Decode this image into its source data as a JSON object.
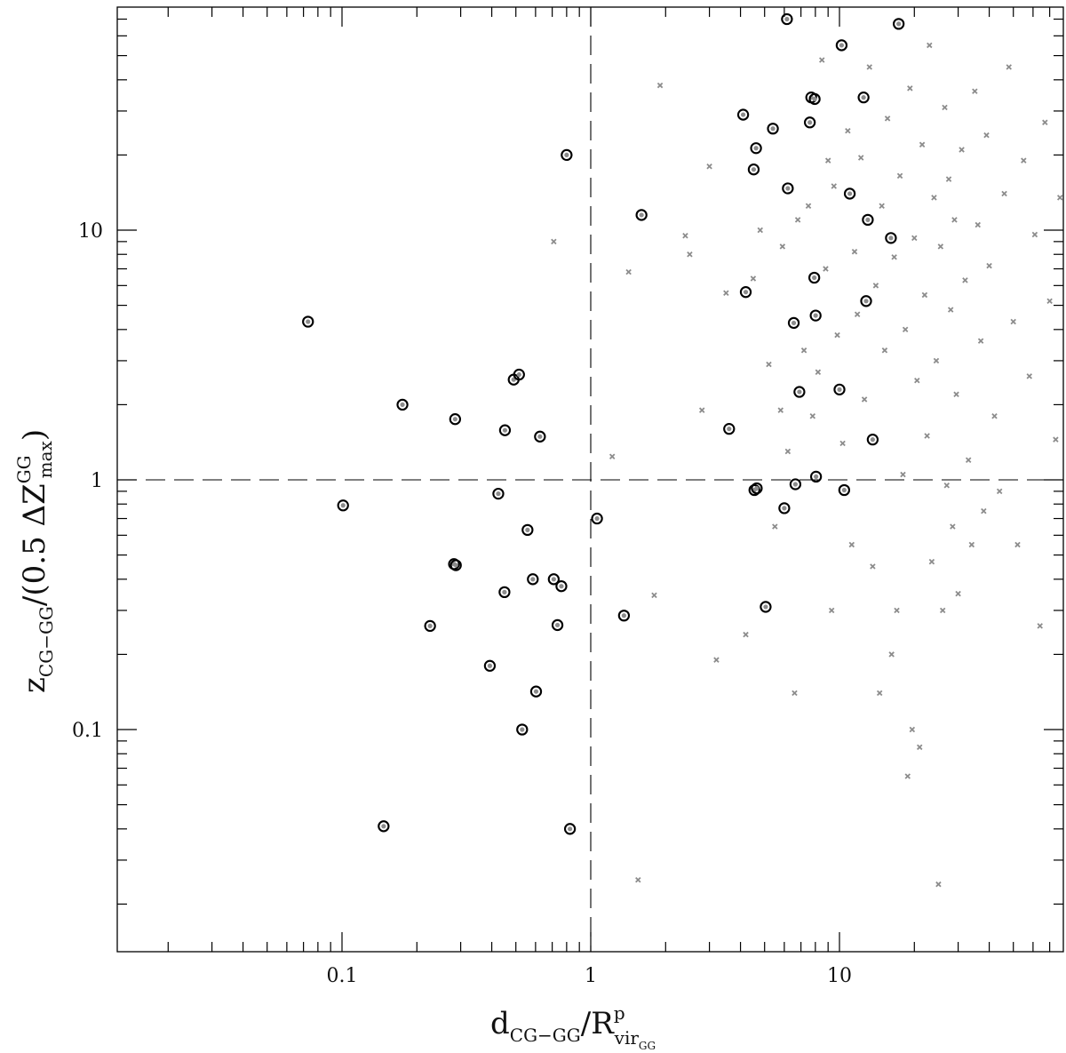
{
  "chart_data": {
    "type": "scatter",
    "title": "",
    "xscale": "log",
    "yscale": "log",
    "xlim": [
      0.014,
      80
    ],
    "ylim": [
      0.015,
      80
    ],
    "x_ticks": [
      {
        "value": 0.1,
        "label": "0.1"
      },
      {
        "value": 1,
        "label": "1"
      },
      {
        "value": 10,
        "label": "10"
      }
    ],
    "y_ticks": [
      {
        "value": 0.1,
        "label": "0.1"
      },
      {
        "value": 1,
        "label": "1"
      },
      {
        "value": 10,
        "label": "10"
      }
    ],
    "xlabel": {
      "main": "d",
      "sub": "CG−GG",
      "slash": "/R",
      "sup": "p",
      "sub2": "vir",
      "subsub": "GG"
    },
    "ylabel": {
      "main": "z",
      "sub": "CG−GG",
      "rest": "/(0.5 ΔZ",
      "sup": "GG",
      "sub2": "max",
      "close": ")"
    },
    "reference_lines": [
      {
        "axis": "x",
        "value": 1,
        "style": "dashed"
      },
      {
        "axis": "y",
        "value": 1,
        "style": "dashed"
      }
    ],
    "colors": {
      "background_points": "#8c8c8c",
      "highlight_circles": "#000000",
      "axes": "#000000"
    },
    "grid": false,
    "series": [
      {
        "marker": "circle",
        "points": [
          [
            0.073,
            4.3
          ],
          [
            0.101,
            0.79
          ],
          [
            0.147,
            0.041
          ],
          [
            0.175,
            2.0
          ],
          [
            0.226,
            0.26
          ],
          [
            0.285,
            1.75
          ],
          [
            0.282,
            0.46
          ],
          [
            0.287,
            0.455
          ],
          [
            0.393,
            0.18
          ],
          [
            0.425,
            0.88
          ],
          [
            0.452,
            1.58
          ],
          [
            0.45,
            0.355
          ],
          [
            0.49,
            2.52
          ],
          [
            0.515,
            2.64
          ],
          [
            0.53,
            0.1
          ],
          [
            0.557,
            0.63
          ],
          [
            0.585,
            0.4
          ],
          [
            0.603,
            0.142
          ],
          [
            0.625,
            1.49
          ],
          [
            0.71,
            0.4
          ],
          [
            0.735,
            0.262
          ],
          [
            0.762,
            0.375
          ],
          [
            0.8,
            20.0
          ],
          [
            0.825,
            0.04
          ],
          [
            1.06,
            0.7
          ],
          [
            1.36,
            0.286
          ],
          [
            1.6,
            11.5
          ],
          [
            3.6,
            1.6
          ],
          [
            4.1,
            29.0
          ],
          [
            4.2,
            5.65
          ],
          [
            4.55,
            0.91
          ],
          [
            4.52,
            17.5
          ],
          [
            4.62,
            21.3
          ],
          [
            4.65,
            0.925
          ],
          [
            5.05,
            0.31
          ],
          [
            5.4,
            25.5
          ],
          [
            6.0,
            0.77
          ],
          [
            6.15,
            70.0
          ],
          [
            6.2,
            14.7
          ],
          [
            6.55,
            4.25
          ],
          [
            6.65,
            0.96
          ],
          [
            6.9,
            2.25
          ],
          [
            7.6,
            27.0
          ],
          [
            7.7,
            34.0
          ],
          [
            7.95,
            33.5
          ],
          [
            7.92,
            6.45
          ],
          [
            8.05,
            1.03
          ],
          [
            8.02,
            4.55
          ],
          [
            10.0,
            2.3
          ],
          [
            10.2,
            55.0
          ],
          [
            10.45,
            0.91
          ],
          [
            11.0,
            14.0
          ],
          [
            12.5,
            34.0
          ],
          [
            12.8,
            5.2
          ],
          [
            13.0,
            11.0
          ],
          [
            13.6,
            1.45
          ],
          [
            16.1,
            9.3
          ],
          [
            17.3,
            67.0
          ]
        ]
      },
      {
        "marker": "x",
        "points": [
          [
            0.71,
            9.0
          ],
          [
            1.22,
            1.24
          ],
          [
            1.42,
            6.8
          ],
          [
            1.55,
            0.025
          ],
          [
            1.8,
            0.345
          ],
          [
            1.9,
            38.0
          ],
          [
            2.4,
            9.5
          ],
          [
            2.5,
            8.0
          ],
          [
            2.8,
            1.9
          ],
          [
            3.0,
            18.0
          ],
          [
            3.2,
            0.19
          ],
          [
            3.5,
            5.6
          ],
          [
            4.2,
            0.24
          ],
          [
            4.5,
            6.4
          ],
          [
            4.8,
            10.0
          ],
          [
            5.2,
            2.9
          ],
          [
            5.5,
            0.65
          ],
          [
            5.8,
            1.9
          ],
          [
            5.9,
            8.6
          ],
          [
            6.2,
            1.3
          ],
          [
            6.6,
            0.14
          ],
          [
            6.8,
            11.0
          ],
          [
            7.2,
            3.3
          ],
          [
            7.5,
            12.5
          ],
          [
            7.8,
            1.8
          ],
          [
            8.2,
            2.7
          ],
          [
            8.5,
            48.0
          ],
          [
            8.8,
            7.0
          ],
          [
            9.0,
            19.0
          ],
          [
            9.3,
            0.3
          ],
          [
            9.5,
            15.0
          ],
          [
            9.8,
            3.8
          ],
          [
            10.3,
            1.4
          ],
          [
            10.8,
            25.0
          ],
          [
            11.2,
            0.55
          ],
          [
            11.5,
            8.2
          ],
          [
            11.8,
            4.6
          ],
          [
            12.2,
            19.5
          ],
          [
            12.6,
            2.1
          ],
          [
            13.2,
            45.0
          ],
          [
            13.6,
            0.45
          ],
          [
            14.0,
            6.0
          ],
          [
            14.5,
            0.14
          ],
          [
            14.8,
            12.5
          ],
          [
            15.2,
            3.3
          ],
          [
            15.6,
            28.0
          ],
          [
            16.2,
            0.2
          ],
          [
            16.6,
            7.8
          ],
          [
            17.0,
            0.3
          ],
          [
            17.5,
            16.5
          ],
          [
            18.0,
            1.05
          ],
          [
            18.4,
            4.0
          ],
          [
            18.8,
            0.065
          ],
          [
            19.2,
            37.0
          ],
          [
            19.6,
            0.1
          ],
          [
            20.0,
            9.3
          ],
          [
            20.5,
            2.5
          ],
          [
            21.0,
            0.085
          ],
          [
            21.5,
            22.0
          ],
          [
            22.0,
            5.5
          ],
          [
            22.5,
            1.5
          ],
          [
            23.0,
            55.0
          ],
          [
            23.5,
            0.47
          ],
          [
            24.0,
            13.5
          ],
          [
            24.5,
            3.0
          ],
          [
            25.0,
            0.024
          ],
          [
            25.5,
            8.6
          ],
          [
            26.0,
            0.3
          ],
          [
            26.5,
            31.0
          ],
          [
            27.0,
            0.95
          ],
          [
            27.5,
            16.0
          ],
          [
            28.0,
            4.8
          ],
          [
            28.5,
            0.65
          ],
          [
            29.0,
            11.0
          ],
          [
            29.5,
            2.2
          ],
          [
            30.0,
            0.35
          ],
          [
            31.0,
            21.0
          ],
          [
            32.0,
            6.3
          ],
          [
            33.0,
            1.2
          ],
          [
            34.0,
            0.55
          ],
          [
            35.0,
            36.0
          ],
          [
            36.0,
            10.5
          ],
          [
            37.0,
            3.6
          ],
          [
            38.0,
            0.75
          ],
          [
            39.0,
            24.0
          ],
          [
            40.0,
            7.2
          ],
          [
            42.0,
            1.8
          ],
          [
            44.0,
            0.9
          ],
          [
            46.0,
            14.0
          ],
          [
            48.0,
            45.0
          ],
          [
            50.0,
            4.3
          ],
          [
            52.0,
            0.55
          ],
          [
            55.0,
            19.0
          ],
          [
            58.0,
            2.6
          ],
          [
            61.0,
            9.6
          ],
          [
            64.0,
            0.26
          ],
          [
            67.0,
            27.0
          ],
          [
            70.0,
            5.2
          ],
          [
            74.0,
            1.45
          ],
          [
            77.0,
            13.5
          ]
        ]
      }
    ]
  }
}
